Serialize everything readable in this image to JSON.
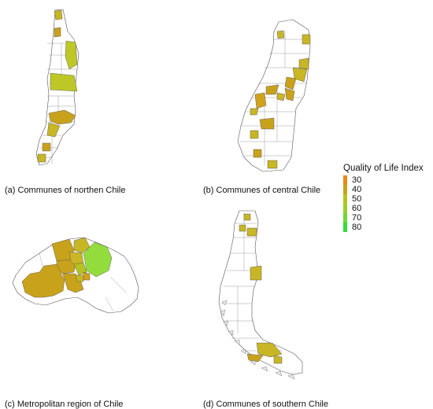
{
  "captions": {
    "north": "(a) Communes of northen Chile",
    "central": "(b) Communes of central Chile",
    "metro": "(c) Metropolitan region of Chile",
    "south": "(d) Communes of southern Chile"
  },
  "legend": {
    "title": "Quality of Life Index",
    "items": [
      {
        "label": "30",
        "color": "#e88a1a"
      },
      {
        "label": "40",
        "color": "#c9a21c"
      },
      {
        "label": "50",
        "color": "#b6c21f"
      },
      {
        "label": "60",
        "color": "#9ccf2c"
      },
      {
        "label": "70",
        "color": "#6fd83a"
      },
      {
        "label": "80",
        "color": "#35dd3a"
      }
    ]
  },
  "colors": {
    "none": "#ffffff",
    "orange": "#e08c22",
    "ochre": "#d1a21c",
    "olive": "#c8b624",
    "yellowgreen": "#bdc826",
    "lightgreen": "#93dc3e",
    "border": "#555555"
  }
}
